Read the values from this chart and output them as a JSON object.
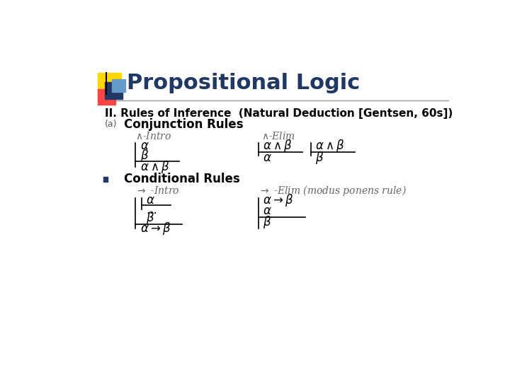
{
  "title": "Propositional Logic",
  "subtitle": "II. Rules of Inference  (Natural Deduction [Gentsen, 60s])",
  "section_a_label": "(a)",
  "section_a_title": "Conjunction Rules",
  "bullet_color": "#1F3864",
  "section_b_title": "Conditional Rules",
  "background_color": "#ffffff",
  "title_color": "#1F3864",
  "subtitle_color": "#000000",
  "italic_color": "#666666",
  "body_color": "#000000",
  "title_fontsize": 22,
  "subtitle_fontsize": 11,
  "section_fontsize": 12,
  "rule_label_fontsize": 10,
  "logic_fontsize": 12,
  "deco_yellow": "#FFD700",
  "deco_red": "#FF4444",
  "deco_blue_dark": "#1F3864",
  "deco_blue_light": "#6699CC"
}
